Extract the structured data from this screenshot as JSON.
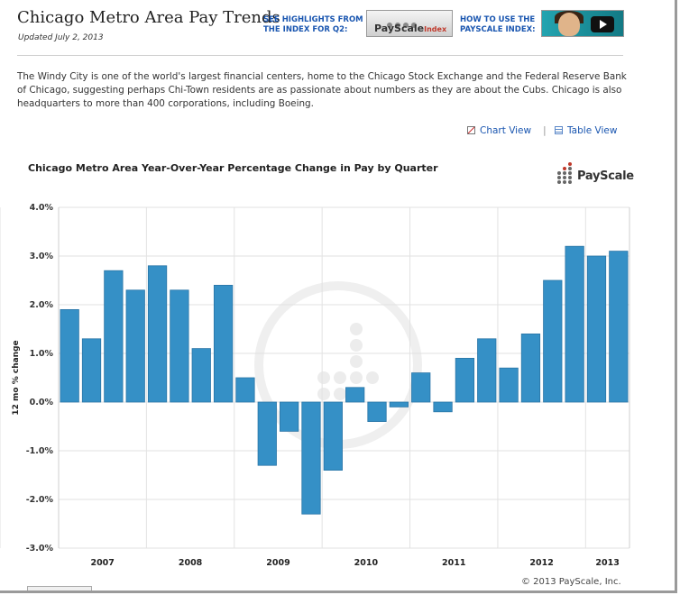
{
  "header": {
    "title": "Chicago Metro Area Pay Trends",
    "updated": "Updated July 2, 2013",
    "promo_highlights": "SEE HIGHLIGHTS FROM THE INDEX FOR Q2:",
    "banner_brand": "PayScale",
    "banner_suffix": "Index",
    "promo_howto": "HOW TO USE THE PAYSCALE INDEX:"
  },
  "intro": "The Windy City is one of the world's largest financial centers, home to the Chicago Stock Exchange and the Federal Reserve Bank of Chicago, suggesting perhaps Chi-Town residents are as passionate about numbers as they are about the Cubs. Chicago is also headquarters to more than 400 corporations, including Boeing.",
  "views": {
    "chart": "Chart View",
    "separator": "|",
    "table": "Table View"
  },
  "logo": {
    "text": "PayScale"
  },
  "copyright": "© 2013 PayScale, Inc.",
  "colors": {
    "bar": "#3590c6",
    "bar_edge": "#2a75a6",
    "grid": "#e2e2e2"
  },
  "chart_data": {
    "type": "bar",
    "title": "Chicago Metro Area Year-Over-Year Percentage Change in Pay by Quarter",
    "xlabel": "",
    "ylabel": "12 mo % change",
    "ylim": [
      -3.0,
      4.0
    ],
    "yticks": [
      "4.0%",
      "3.0%",
      "2.0%",
      "1.0%",
      "0.0%",
      "-1.0%",
      "-2.0%",
      "-3.0%"
    ],
    "year_labels": [
      "2007",
      "2008",
      "2009",
      "2010",
      "2011",
      "2012",
      "2013"
    ],
    "grid": true,
    "series": [
      {
        "values": [
          1.9,
          1.3,
          2.7,
          2.3,
          2.8,
          2.3,
          1.1,
          2.4,
          0.5,
          -1.3,
          -0.6,
          -2.3,
          -1.4,
          0.3,
          -0.4,
          -0.1,
          0.6,
          -0.2,
          0.9,
          1.3,
          0.7,
          1.4,
          2.5,
          3.2,
          3.0,
          3.1
        ]
      }
    ]
  }
}
